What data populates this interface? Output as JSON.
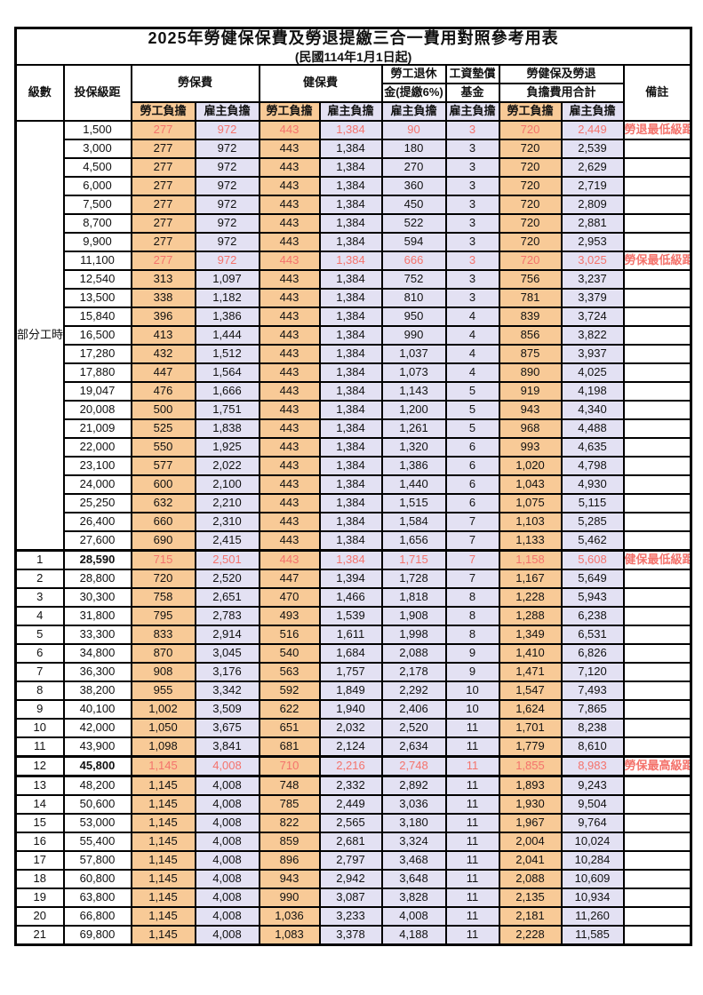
{
  "title": "2025年勞健保保費及勞退提繳三合一費用對照參考用表",
  "subtitle": "(民國114年1月1日起)",
  "colors": {
    "employee_bg": "#F8CA97",
    "employer_bg": "#E3E1F3",
    "highlight_text": "#F4736C",
    "border": "#000000"
  },
  "header": {
    "level": "級數",
    "bracket": "投保級距",
    "labor_insurance": "勞保費",
    "health_insurance": "健保費",
    "pension_line1": "勞工退休",
    "pension_line2": "金(提繳6%)",
    "wage_fund_line1": "工資墊償",
    "wage_fund_line2": "基金",
    "total_line1": "勞健保及勞退",
    "total_line2": "負擔費用合計",
    "remarks": "備註",
    "employee_label": "勞工負擔",
    "employer_label": "雇主負擔"
  },
  "part_time_label": "部分工時",
  "part_time_rowspan": 23,
  "value_column_pattern": [
    "employee",
    "employer",
    "employee",
    "employer",
    "employer",
    "employer",
    "employee",
    "employer"
  ],
  "rows": [
    {
      "level": "",
      "bracket": "1,500",
      "v": [
        "277",
        "972",
        "443",
        "1,384",
        "90",
        "3",
        "720",
        "2,449"
      ],
      "remark": "勞退最低級距",
      "red": true
    },
    {
      "level": "",
      "bracket": "3,000",
      "v": [
        "277",
        "972",
        "443",
        "1,384",
        "180",
        "3",
        "720",
        "2,539"
      ],
      "remark": ""
    },
    {
      "level": "",
      "bracket": "4,500",
      "v": [
        "277",
        "972",
        "443",
        "1,384",
        "270",
        "3",
        "720",
        "2,629"
      ],
      "remark": ""
    },
    {
      "level": "",
      "bracket": "6,000",
      "v": [
        "277",
        "972",
        "443",
        "1,384",
        "360",
        "3",
        "720",
        "2,719"
      ],
      "remark": ""
    },
    {
      "level": "",
      "bracket": "7,500",
      "v": [
        "277",
        "972",
        "443",
        "1,384",
        "450",
        "3",
        "720",
        "2,809"
      ],
      "remark": ""
    },
    {
      "level": "",
      "bracket": "8,700",
      "v": [
        "277",
        "972",
        "443",
        "1,384",
        "522",
        "3",
        "720",
        "2,881"
      ],
      "remark": ""
    },
    {
      "level": "",
      "bracket": "9,900",
      "v": [
        "277",
        "972",
        "443",
        "1,384",
        "594",
        "3",
        "720",
        "2,953"
      ],
      "remark": ""
    },
    {
      "level": "",
      "bracket": "11,100",
      "v": [
        "277",
        "972",
        "443",
        "1,384",
        "666",
        "3",
        "720",
        "3,025"
      ],
      "remark": "勞保最低級距",
      "red": true
    },
    {
      "level": "",
      "bracket": "12,540",
      "v": [
        "313",
        "1,097",
        "443",
        "1,384",
        "752",
        "3",
        "756",
        "3,237"
      ],
      "remark": ""
    },
    {
      "level": "",
      "bracket": "13,500",
      "v": [
        "338",
        "1,182",
        "443",
        "1,384",
        "810",
        "3",
        "781",
        "3,379"
      ],
      "remark": ""
    },
    {
      "level": "",
      "bracket": "15,840",
      "v": [
        "396",
        "1,386",
        "443",
        "1,384",
        "950",
        "4",
        "839",
        "3,724"
      ],
      "remark": ""
    },
    {
      "level": "",
      "bracket": "16,500",
      "v": [
        "413",
        "1,444",
        "443",
        "1,384",
        "990",
        "4",
        "856",
        "3,822"
      ],
      "remark": ""
    },
    {
      "level": "",
      "bracket": "17,280",
      "v": [
        "432",
        "1,512",
        "443",
        "1,384",
        "1,037",
        "4",
        "875",
        "3,937"
      ],
      "remark": ""
    },
    {
      "level": "",
      "bracket": "17,880",
      "v": [
        "447",
        "1,564",
        "443",
        "1,384",
        "1,073",
        "4",
        "890",
        "4,025"
      ],
      "remark": ""
    },
    {
      "level": "",
      "bracket": "19,047",
      "v": [
        "476",
        "1,666",
        "443",
        "1,384",
        "1,143",
        "5",
        "919",
        "4,198"
      ],
      "remark": ""
    },
    {
      "level": "",
      "bracket": "20,008",
      "v": [
        "500",
        "1,751",
        "443",
        "1,384",
        "1,200",
        "5",
        "943",
        "4,340"
      ],
      "remark": ""
    },
    {
      "level": "",
      "bracket": "21,009",
      "v": [
        "525",
        "1,838",
        "443",
        "1,384",
        "1,261",
        "5",
        "968",
        "4,488"
      ],
      "remark": ""
    },
    {
      "level": "",
      "bracket": "22,000",
      "v": [
        "550",
        "1,925",
        "443",
        "1,384",
        "1,320",
        "6",
        "993",
        "4,635"
      ],
      "remark": ""
    },
    {
      "level": "",
      "bracket": "23,100",
      "v": [
        "577",
        "2,022",
        "443",
        "1,384",
        "1,386",
        "6",
        "1,020",
        "4,798"
      ],
      "remark": ""
    },
    {
      "level": "",
      "bracket": "24,000",
      "v": [
        "600",
        "2,100",
        "443",
        "1,384",
        "1,440",
        "6",
        "1,043",
        "4,930"
      ],
      "remark": ""
    },
    {
      "level": "",
      "bracket": "25,250",
      "v": [
        "632",
        "2,210",
        "443",
        "1,384",
        "1,515",
        "6",
        "1,075",
        "5,115"
      ],
      "remark": ""
    },
    {
      "level": "",
      "bracket": "26,400",
      "v": [
        "660",
        "2,310",
        "443",
        "1,384",
        "1,584",
        "7",
        "1,103",
        "5,285"
      ],
      "remark": ""
    },
    {
      "level": "",
      "bracket": "27,600",
      "v": [
        "690",
        "2,415",
        "443",
        "1,384",
        "1,656",
        "7",
        "1,133",
        "5,462"
      ],
      "remark": ""
    },
    {
      "level": "1",
      "bracket": "28,590",
      "v": [
        "715",
        "2,501",
        "443",
        "1,384",
        "1,715",
        "7",
        "1,158",
        "5,608"
      ],
      "remark": "健保最低級距",
      "red": true,
      "bold": true,
      "thick": true
    },
    {
      "level": "2",
      "bracket": "28,800",
      "v": [
        "720",
        "2,520",
        "447",
        "1,394",
        "1,728",
        "7",
        "1,167",
        "5,649"
      ],
      "remark": ""
    },
    {
      "level": "3",
      "bracket": "30,300",
      "v": [
        "758",
        "2,651",
        "470",
        "1,466",
        "1,818",
        "8",
        "1,228",
        "5,943"
      ],
      "remark": ""
    },
    {
      "level": "4",
      "bracket": "31,800",
      "v": [
        "795",
        "2,783",
        "493",
        "1,539",
        "1,908",
        "8",
        "1,288",
        "6,238"
      ],
      "remark": ""
    },
    {
      "level": "5",
      "bracket": "33,300",
      "v": [
        "833",
        "2,914",
        "516",
        "1,611",
        "1,998",
        "8",
        "1,349",
        "6,531"
      ],
      "remark": ""
    },
    {
      "level": "6",
      "bracket": "34,800",
      "v": [
        "870",
        "3,045",
        "540",
        "1,684",
        "2,088",
        "9",
        "1,410",
        "6,826"
      ],
      "remark": ""
    },
    {
      "level": "7",
      "bracket": "36,300",
      "v": [
        "908",
        "3,176",
        "563",
        "1,757",
        "2,178",
        "9",
        "1,471",
        "7,120"
      ],
      "remark": ""
    },
    {
      "level": "8",
      "bracket": "38,200",
      "v": [
        "955",
        "3,342",
        "592",
        "1,849",
        "2,292",
        "10",
        "1,547",
        "7,493"
      ],
      "remark": ""
    },
    {
      "level": "9",
      "bracket": "40,100",
      "v": [
        "1,002",
        "3,509",
        "622",
        "1,940",
        "2,406",
        "10",
        "1,624",
        "7,865"
      ],
      "remark": ""
    },
    {
      "level": "10",
      "bracket": "42,000",
      "v": [
        "1,050",
        "3,675",
        "651",
        "2,032",
        "2,520",
        "11",
        "1,701",
        "8,238"
      ],
      "remark": ""
    },
    {
      "level": "11",
      "bracket": "43,900",
      "v": [
        "1,098",
        "3,841",
        "681",
        "2,124",
        "2,634",
        "11",
        "1,779",
        "8,610"
      ],
      "remark": ""
    },
    {
      "level": "12",
      "bracket": "45,800",
      "v": [
        "1,145",
        "4,008",
        "710",
        "2,216",
        "2,748",
        "11",
        "1,855",
        "8,983"
      ],
      "remark": "勞保最高級距",
      "red": true,
      "bold": true,
      "thick": true
    },
    {
      "level": "13",
      "bracket": "48,200",
      "v": [
        "1,145",
        "4,008",
        "748",
        "2,332",
        "2,892",
        "11",
        "1,893",
        "9,243"
      ],
      "remark": "",
      "thick": true
    },
    {
      "level": "14",
      "bracket": "50,600",
      "v": [
        "1,145",
        "4,008",
        "785",
        "2,449",
        "3,036",
        "11",
        "1,930",
        "9,504"
      ],
      "remark": ""
    },
    {
      "level": "15",
      "bracket": "53,000",
      "v": [
        "1,145",
        "4,008",
        "822",
        "2,565",
        "3,180",
        "11",
        "1,967",
        "9,764"
      ],
      "remark": ""
    },
    {
      "level": "16",
      "bracket": "55,400",
      "v": [
        "1,145",
        "4,008",
        "859",
        "2,681",
        "3,324",
        "11",
        "2,004",
        "10,024"
      ],
      "remark": ""
    },
    {
      "level": "17",
      "bracket": "57,800",
      "v": [
        "1,145",
        "4,008",
        "896",
        "2,797",
        "3,468",
        "11",
        "2,041",
        "10,284"
      ],
      "remark": ""
    },
    {
      "level": "18",
      "bracket": "60,800",
      "v": [
        "1,145",
        "4,008",
        "943",
        "2,942",
        "3,648",
        "11",
        "2,088",
        "10,609"
      ],
      "remark": ""
    },
    {
      "level": "19",
      "bracket": "63,800",
      "v": [
        "1,145",
        "4,008",
        "990",
        "3,087",
        "3,828",
        "11",
        "2,135",
        "10,934"
      ],
      "remark": ""
    },
    {
      "level": "20",
      "bracket": "66,800",
      "v": [
        "1,145",
        "4,008",
        "1,036",
        "3,233",
        "4,008",
        "11",
        "2,181",
        "11,260"
      ],
      "remark": ""
    },
    {
      "level": "21",
      "bracket": "69,800",
      "v": [
        "1,145",
        "4,008",
        "1,083",
        "3,378",
        "4,188",
        "11",
        "2,228",
        "11,585"
      ],
      "remark": ""
    }
  ]
}
